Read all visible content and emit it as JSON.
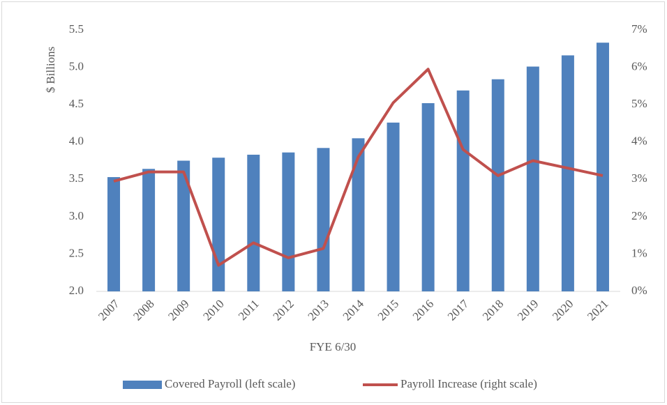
{
  "chart_data": {
    "type": "combo",
    "x_label": "FYE 6/30",
    "y_label": "$ Billions",
    "categories": [
      "2007",
      "2008",
      "2009",
      "2010",
      "2011",
      "2012",
      "2013",
      "2014",
      "2015",
      "2016",
      "2017",
      "2018",
      "2019",
      "2020",
      "2021"
    ],
    "series": [
      {
        "name": "Covered Payroll (left scale)",
        "type": "bar",
        "axis": "y",
        "color": "#4f81bd",
        "values": [
          3.53,
          3.64,
          3.75,
          3.79,
          3.83,
          3.86,
          3.92,
          4.05,
          4.26,
          4.52,
          4.69,
          4.84,
          5.01,
          5.16,
          5.33
        ]
      },
      {
        "name": "Payroll Increase (right scale)",
        "type": "line",
        "axis": "y2",
        "color": "#c0504d",
        "values": [
          2.95,
          3.2,
          3.2,
          0.7,
          1.3,
          0.9,
          1.15,
          3.6,
          5.05,
          5.95,
          3.8,
          3.1,
          3.5,
          3.3,
          3.1
        ]
      }
    ],
    "ylim": [
      2,
      5.5
    ],
    "yticks": [
      {
        "value": 2,
        "label": "2.0"
      },
      {
        "value": 2.5,
        "label": "2.5"
      },
      {
        "value": 3,
        "label": "3.0"
      },
      {
        "value": 3.5,
        "label": "3.5"
      },
      {
        "value": 4,
        "label": "4.0"
      },
      {
        "value": 4.5,
        "label": "4.5"
      },
      {
        "value": 5,
        "label": "5.0"
      },
      {
        "value": 5.5,
        "label": "5.5"
      }
    ],
    "y2lim": [
      0,
      7
    ],
    "y2ticks": [
      {
        "value": 0,
        "label": "0%"
      },
      {
        "value": 1,
        "label": "1%"
      },
      {
        "value": 2,
        "label": "2%"
      },
      {
        "value": 3,
        "label": "3%"
      },
      {
        "value": 4,
        "label": "4%"
      },
      {
        "value": 5,
        "label": "5%"
      },
      {
        "value": 6,
        "label": "6%"
      },
      {
        "value": 7,
        "label": "7%"
      }
    ],
    "grid": false,
    "legend": "bottom"
  }
}
